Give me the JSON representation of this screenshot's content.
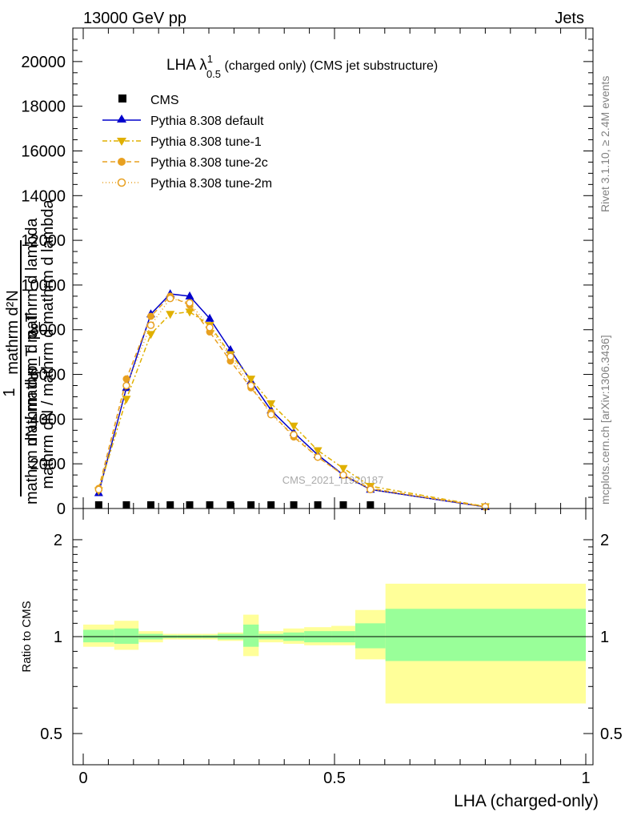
{
  "header": {
    "left": "13000 GeV pp",
    "right": "Jets"
  },
  "side_text": {
    "rivet": "Rivet 3.1.10, ≥ 2.4M events",
    "mcplots": "mcplots.cern.ch [arXiv:1306.3436]"
  },
  "watermark": "CMS_2021_I1920187",
  "chart_data": [
    {
      "type": "line",
      "title": "LHA λ¹₀.₅ (charged only) (CMS jet substructure)",
      "title_parts": {
        "main": "LHA λ",
        "sup": "1",
        "sub": "0.5",
        "rest": " (charged only) (CMS jet substructure)"
      },
      "ylabel_lines": [
        "mathrm d²N",
        "mathrm d p_T mathrm d lambda",
        "1",
        "mathrm dN / mathrm d p_T"
      ],
      "ylabel_overlay": "mathrm dN / mathrm d mathrm d lambda",
      "xlim": [
        0,
        1
      ],
      "ylim": [
        0,
        21500
      ],
      "yticks": [
        0,
        2000,
        4000,
        6000,
        8000,
        10000,
        12000,
        14000,
        16000,
        18000,
        20000
      ],
      "ytick_labels": [
        "0",
        "2000",
        "4000",
        "6000",
        "8000",
        "10000",
        "12000",
        "14000",
        "16000",
        "18000",
        "20000"
      ],
      "series": [
        {
          "name": "CMS",
          "color": "#000000",
          "marker": "square",
          "line": "none",
          "x": [
            0.0308,
            0.0859,
            0.1345,
            0.1731,
            0.2118,
            0.2517,
            0.2929,
            0.3338,
            0.3737,
            0.4189,
            0.4667,
            0.5175,
            0.5714
          ],
          "values": [
            0,
            0,
            0,
            0,
            0,
            0,
            0,
            0,
            0,
            0,
            0,
            0,
            0
          ]
        },
        {
          "name": "Pythia 8.308 default",
          "color": "#0000cc",
          "marker": "triangle-up",
          "line": "solid",
          "x": [
            0.0308,
            0.0859,
            0.1345,
            0.1731,
            0.2118,
            0.2517,
            0.2929,
            0.3338,
            0.3737,
            0.4189,
            0.4667,
            0.5175,
            0.5714,
            0.8
          ],
          "values": [
            700,
            5400,
            8700,
            9600,
            9500,
            8500,
            7100,
            5700,
            4400,
            3400,
            2400,
            1500,
            850,
            70
          ]
        },
        {
          "name": "Pythia 8.308 tune-1",
          "color": "#e0b000",
          "marker": "triangle-down",
          "line": "dashdot",
          "x": [
            0.0308,
            0.0859,
            0.1345,
            0.1731,
            0.2118,
            0.2517,
            0.2929,
            0.3338,
            0.3737,
            0.4189,
            0.4667,
            0.5175,
            0.5714,
            0.8
          ],
          "values": [
            800,
            4900,
            7800,
            8700,
            8800,
            8200,
            6900,
            5800,
            4700,
            3700,
            2600,
            1800,
            1000,
            90
          ]
        },
        {
          "name": "Pythia 8.308 tune-2c",
          "color": "#e8a020",
          "marker": "circle",
          "line": "dashed",
          "x": [
            0.0308,
            0.0859,
            0.1345,
            0.1731,
            0.2118,
            0.2517,
            0.2929,
            0.3338,
            0.3737,
            0.4189,
            0.4667,
            0.5175,
            0.5714,
            0.8
          ],
          "values": [
            900,
            5800,
            8600,
            9500,
            9100,
            7900,
            6600,
            5400,
            4300,
            3200,
            2300,
            1500,
            900,
            80
          ]
        },
        {
          "name": "Pythia 8.308 tune-2m",
          "color": "#e8a020",
          "marker": "circle-open",
          "line": "dotted",
          "x": [
            0.0308,
            0.0859,
            0.1345,
            0.1731,
            0.2118,
            0.2517,
            0.2929,
            0.3338,
            0.3737,
            0.4189,
            0.4667,
            0.5175,
            0.5714,
            0.8
          ],
          "values": [
            850,
            5500,
            8200,
            9400,
            9200,
            8100,
            6800,
            5500,
            4200,
            3300,
            2300,
            1500,
            850,
            75
          ]
        }
      ],
      "legend": "top-left",
      "xlabel": ""
    },
    {
      "type": "area",
      "ylabel": "Ratio to CMS",
      "xlabel": "LHA (charged-only)",
      "xlim": [
        -0.02,
        1.01
      ],
      "ylim": [
        0.4,
        2.5
      ],
      "yscale": "log",
      "yticks": [
        0.5,
        1,
        2
      ],
      "ytick_labels": [
        "0.5",
        "1",
        "2"
      ],
      "xticks": [
        0,
        0.5,
        1
      ],
      "xtick_labels": [
        "0",
        "0.5",
        "1"
      ],
      "reference": 1,
      "bins": [
        {
          "lo": 0.0,
          "hi": 0.0617,
          "inner": [
            0.96,
            1.05
          ],
          "outer": [
            0.93,
            1.09
          ]
        },
        {
          "lo": 0.0617,
          "hi": 0.1102,
          "inner": [
            0.95,
            1.06
          ],
          "outer": [
            0.91,
            1.12
          ]
        },
        {
          "lo": 0.1102,
          "hi": 0.1587,
          "inner": [
            0.98,
            1.02
          ],
          "outer": [
            0.96,
            1.04
          ]
        },
        {
          "lo": 0.1587,
          "hi": 0.1875,
          "inner": [
            0.99,
            1.01
          ],
          "outer": [
            0.98,
            1.02
          ]
        },
        {
          "lo": 0.1875,
          "hi": 0.2361,
          "inner": [
            0.99,
            1.01
          ],
          "outer": [
            0.98,
            1.02
          ]
        },
        {
          "lo": 0.2361,
          "hi": 0.2674,
          "inner": [
            0.99,
            1.01
          ],
          "outer": [
            0.98,
            1.02
          ]
        },
        {
          "lo": 0.2674,
          "hi": 0.3184,
          "inner": [
            0.98,
            1.02
          ],
          "outer": [
            0.97,
            1.03
          ]
        },
        {
          "lo": 0.3184,
          "hi": 0.3492,
          "inner": [
            0.93,
            1.09
          ],
          "outer": [
            0.87,
            1.17
          ]
        },
        {
          "lo": 0.3492,
          "hi": 0.3982,
          "inner": [
            0.98,
            1.02
          ],
          "outer": [
            0.96,
            1.04
          ]
        },
        {
          "lo": 0.3982,
          "hi": 0.4397,
          "inner": [
            0.97,
            1.03
          ],
          "outer": [
            0.95,
            1.06
          ]
        },
        {
          "lo": 0.4397,
          "hi": 0.4937,
          "inner": [
            0.96,
            1.04
          ],
          "outer": [
            0.94,
            1.07
          ]
        },
        {
          "lo": 0.4937,
          "hi": 0.5413,
          "inner": [
            0.96,
            1.04
          ],
          "outer": [
            0.94,
            1.08
          ]
        },
        {
          "lo": 0.5413,
          "hi": 0.6014,
          "inner": [
            0.92,
            1.1
          ],
          "outer": [
            0.85,
            1.21
          ]
        },
        {
          "lo": 0.6014,
          "hi": 1.0,
          "inner": [
            0.84,
            1.22
          ],
          "outer": [
            0.62,
            1.46
          ]
        }
      ],
      "colors": {
        "inner": "#99ff99",
        "outer": "#ffff99",
        "reference": "#000000"
      }
    }
  ]
}
